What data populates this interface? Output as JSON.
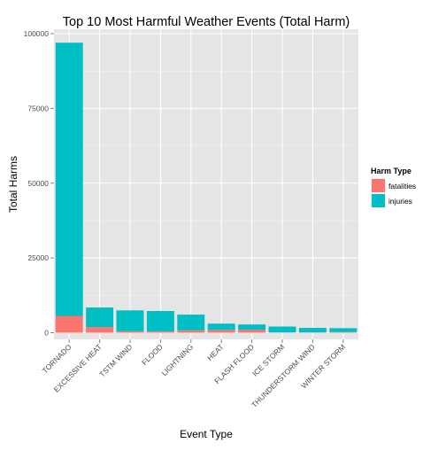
{
  "chart_data": {
    "type": "bar",
    "stacked": true,
    "title": "Top 10 Most Harmful Weather Events (Total Harm)",
    "xlabel": "Event Type",
    "ylabel": "Total Harms",
    "categories": [
      "TORNADO",
      "EXCESSIVE HEAT",
      "TSTM WIND",
      "FLOOD",
      "LIGHTNING",
      "HEAT",
      "FLASH FLOOD",
      "ICE STORM",
      "THUNDERSTORM WIND",
      "WINTER STORM"
    ],
    "series": [
      {
        "name": "fatalities",
        "color": "#F8766D",
        "values": [
          5633,
          1903,
          504,
          470,
          816,
          937,
          978,
          89,
          133,
          206
        ]
      },
      {
        "name": "injuries",
        "color": "#00BFC4",
        "values": [
          91346,
          6525,
          6957,
          6789,
          5230,
          2100,
          1777,
          1975,
          1488,
          1321
        ]
      }
    ],
    "ylim": [
      0,
      100000
    ],
    "yticks": [
      0,
      25000,
      50000,
      75000,
      100000
    ],
    "ytick_labels": [
      "0",
      "25000",
      "50000",
      "75000",
      "100000"
    ],
    "grid": true,
    "legend": {
      "title": "Harm Type",
      "position": "right"
    }
  }
}
